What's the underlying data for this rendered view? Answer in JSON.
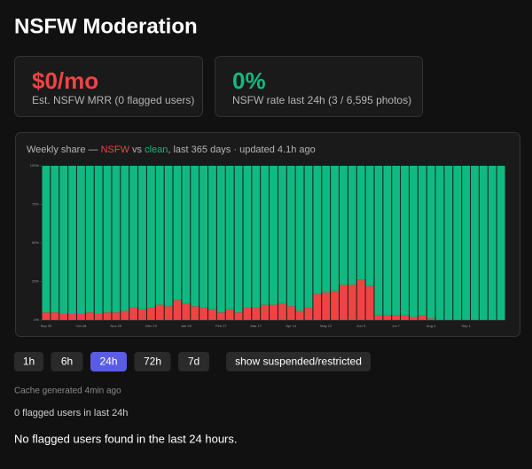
{
  "header": {
    "title": "NSFW Moderation"
  },
  "cards": [
    {
      "value": "$0/mo",
      "label": "Est. NSFW MRR (0 flagged users)"
    },
    {
      "value": "0%",
      "label": "NSFW rate last 24h (3 / 6,595 photos)"
    }
  ],
  "chart_data": {
    "type": "stacked_bar",
    "subtitle_parts": [
      "Weekly share — ",
      " vs ",
      ", last 365 days · updated 4.1h ago"
    ],
    "categories": [
      "Sep 30",
      null,
      null,
      null,
      "Oct 28",
      null,
      null,
      null,
      "Nov 25",
      null,
      null,
      null,
      "Dec 23",
      null,
      null,
      null,
      "Jan 20",
      null,
      null,
      null,
      "Feb 17",
      null,
      null,
      null,
      "Mar 17",
      null,
      null,
      null,
      "Apr 14",
      null,
      null,
      null,
      "May 12",
      null,
      null,
      null,
      "Jun 9",
      null,
      null,
      null,
      "Jul 7",
      null,
      null,
      null,
      "Aug 4",
      null,
      null,
      null,
      "Sep 1",
      null,
      null,
      null,
      null
    ],
    "series": [
      {
        "name": "NSFW",
        "color": "#ef4444",
        "values": [
          5,
          5,
          4,
          4,
          4,
          5,
          4,
          5,
          5,
          6,
          8,
          7,
          8,
          10,
          9,
          13,
          11,
          9,
          8,
          7,
          5,
          7,
          5,
          8,
          8,
          10,
          10,
          11,
          9,
          6,
          8,
          17,
          18,
          19,
          23,
          23,
          26,
          22,
          3,
          3,
          3,
          3,
          2,
          3,
          1,
          0,
          0,
          0,
          0,
          0,
          0,
          0,
          0
        ]
      },
      {
        "name": "clean",
        "color": "#10b981",
        "values": [
          95,
          95,
          96,
          96,
          96,
          95,
          96,
          95,
          95,
          94,
          92,
          93,
          92,
          90,
          91,
          87,
          89,
          91,
          92,
          93,
          95,
          93,
          95,
          92,
          92,
          90,
          90,
          89,
          91,
          94,
          92,
          83,
          82,
          81,
          77,
          77,
          74,
          78,
          97,
          97,
          97,
          97,
          98,
          97,
          99,
          100,
          100,
          100,
          100,
          100,
          100,
          100,
          100
        ]
      }
    ],
    "ylim": [
      0,
      100
    ],
    "yticks": [
      {
        "value": 0,
        "label": "0%"
      },
      {
        "value": 25,
        "label": "25%"
      },
      {
        "value": 50,
        "label": "50%"
      },
      {
        "value": 75,
        "label": "75%"
      },
      {
        "value": 100,
        "label": "100%"
      }
    ]
  },
  "controls": {
    "windows": [
      "1h",
      "6h",
      "24h",
      "72h",
      "7d"
    ],
    "active": "24h",
    "toggle": "show suspended/restricted"
  },
  "status": {
    "cache": "Cache generated 4min ago",
    "count": "0 flagged users in last 24h",
    "message": "No flagged users found in the last 24 hours."
  }
}
